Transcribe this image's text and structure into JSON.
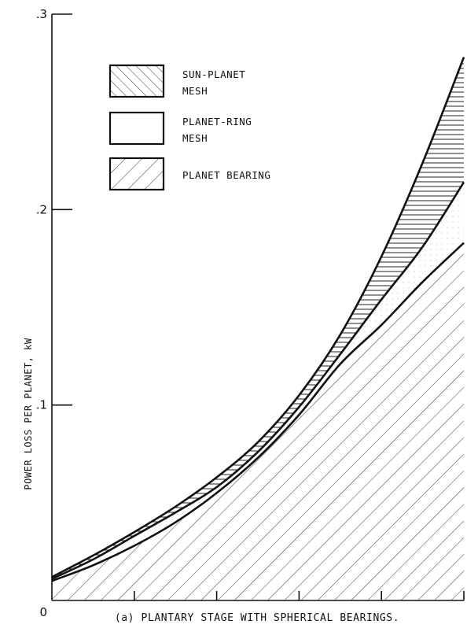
{
  "chart_data": {
    "type": "area",
    "title": "",
    "caption": "(a) PLANTARY STAGE WITH SPHERICAL BEARINGS.",
    "xlabel": "",
    "ylabel": "POWER LOSS PER PLANET, kW",
    "xlim": [
      0,
      5
    ],
    "ylim": [
      0,
      0.3
    ],
    "x_ticks": [
      0,
      1,
      2,
      3,
      4,
      5
    ],
    "y_tick_labels": [
      {
        "value": 0,
        "label": "0"
      },
      {
        "value": 0.1,
        "label": ".1"
      },
      {
        "value": 0.2,
        "label": ".2"
      },
      {
        "value": 0.3,
        "label": ".3"
      }
    ],
    "legend_placement": "top-left",
    "grid": false,
    "x": [
      0,
      0.5,
      1,
      1.5,
      2,
      2.5,
      3,
      3.5,
      4,
      4.5,
      5
    ],
    "series": [
      {
        "name": "PLANET BEARING",
        "pattern": "diagonal-forward",
        "values": [
          0.01,
          0.018,
          0.028,
          0.04,
          0.055,
          0.073,
          0.095,
          0.121,
          0.141,
          0.163,
          0.183
        ]
      },
      {
        "name": "PLANET-RING MESH",
        "pattern": "light-stipple",
        "values": [
          0.011,
          0.021,
          0.033,
          0.045,
          0.058,
          0.076,
          0.099,
          0.126,
          0.154,
          0.181,
          0.214
        ]
      },
      {
        "name": "SUN-PLANET MESH",
        "pattern": "horizontal",
        "values": [
          0.012,
          0.023,
          0.035,
          0.048,
          0.063,
          0.081,
          0.105,
          0.136,
          0.176,
          0.224,
          0.278
        ]
      }
    ],
    "legend": [
      {
        "label_line1": "SUN-PLANET",
        "label_line2": "MESH",
        "pattern": "diagonal-back"
      },
      {
        "label_line1": "PLANET-RING",
        "label_line2": "MESH",
        "pattern": "blank"
      },
      {
        "label_line1": "PLANET BEARING",
        "label_line2": "",
        "pattern": "diagonal-forward"
      }
    ]
  }
}
